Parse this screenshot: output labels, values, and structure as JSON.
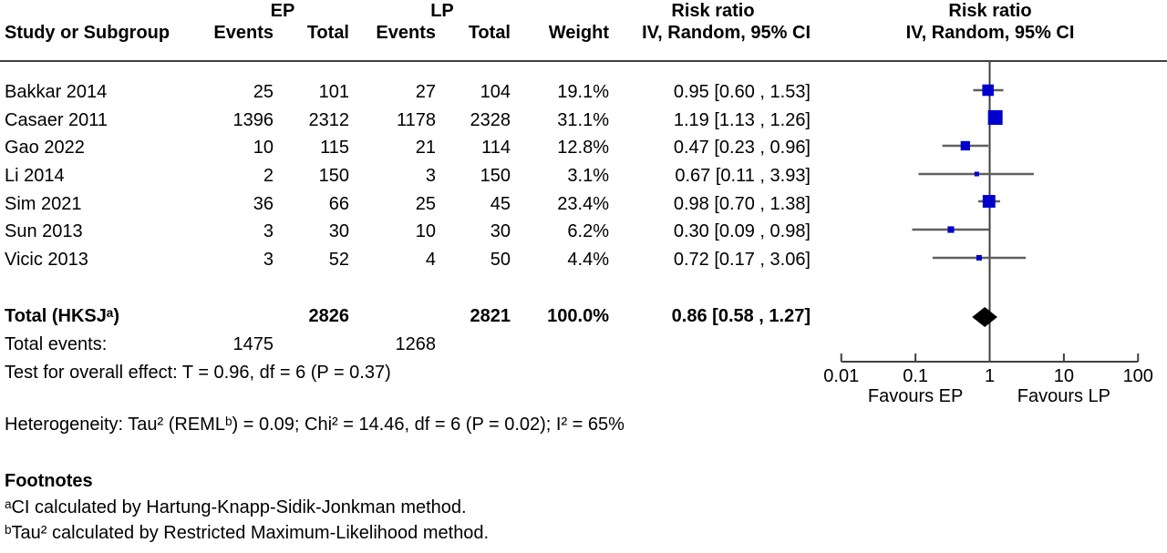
{
  "header": {
    "group1": "EP",
    "group2": "LP",
    "col_study": "Study or Subgroup",
    "col_events": "Events",
    "col_total": "Total",
    "col_weight": "Weight",
    "col_rr_title": "Risk ratio",
    "col_rr_sub": "IV, Random, 95% CI",
    "plot_title": "Risk ratio",
    "plot_sub": "IV, Random, 95% CI"
  },
  "total_row": {
    "label": "Total (HKSJᵃ)",
    "ep_total": 2826,
    "lp_total": 2821,
    "weight": "100.0%",
    "rr_text": "0.86 [0.58 , 1.27]"
  },
  "total_events": {
    "label": "Total events:",
    "ep": 1475,
    "lp": 1268
  },
  "overall_test": "Test for overall effect: T = 0.96, df = 6 (P = 0.37)",
  "heterogeneity": "Heterogeneity: Tau² (REMLᵇ) = 0.09; Chi² = 14.46, df = 6 (P = 0.02); I² = 65%",
  "footnotes": {
    "title": "Footnotes",
    "a": "ᵃCI calculated by Hartung-Knapp-Sidik-Jonkman method.",
    "b": "ᵇTau² calculated by Restricted Maximum-Likelihood method."
  },
  "axis": {
    "ticks": [
      0.01,
      0.1,
      1,
      10,
      100
    ],
    "tick_labels": [
      "0.01",
      "0.1",
      "1",
      "10",
      "100"
    ],
    "favours_left": "Favours EP",
    "favours_right": "Favours LP"
  },
  "colors": {
    "marker": "#0000cc",
    "ci_line": "#606060",
    "diamond": "#000000",
    "axis": "#3f3f3f",
    "text": "#000000"
  },
  "chart_data": {
    "type": "scatter",
    "subtype": "forest-plot",
    "title": "Risk ratio",
    "effect_measure": "Risk ratio, IV, Random, 95% CI",
    "x_scale": "log10",
    "x_range": [
      0.01,
      100
    ],
    "x_ticks": [
      0.01,
      0.1,
      1,
      10,
      100
    ],
    "null_line": 1,
    "favours": [
      "Favours EP",
      "Favours LP"
    ],
    "studies": [
      {
        "name": "Bakkar 2014",
        "ep_events": 25,
        "ep_total": 101,
        "lp_events": 27,
        "lp_total": 104,
        "weight": "19.1%",
        "weight_pct": 19.1,
        "rr_text": "0.95 [0.60 , 1.53]",
        "rr": 0.95,
        "ci_low": 0.6,
        "ci_high": 1.53
      },
      {
        "name": "Casaer 2011",
        "ep_events": 1396,
        "ep_total": 2312,
        "lp_events": 1178,
        "lp_total": 2328,
        "weight": "31.1%",
        "weight_pct": 31.1,
        "rr_text": "1.19 [1.13 , 1.26]",
        "rr": 1.19,
        "ci_low": 1.13,
        "ci_high": 1.26
      },
      {
        "name": "Gao 2022",
        "ep_events": 10,
        "ep_total": 115,
        "lp_events": 21,
        "lp_total": 114,
        "weight": "12.8%",
        "weight_pct": 12.8,
        "rr_text": "0.47 [0.23 , 0.96]",
        "rr": 0.47,
        "ci_low": 0.23,
        "ci_high": 0.96
      },
      {
        "name": "Li 2014",
        "ep_events": 2,
        "ep_total": 150,
        "lp_events": 3,
        "lp_total": 150,
        "weight": "3.1%",
        "weight_pct": 3.1,
        "rr_text": "0.67 [0.11 , 3.93]",
        "rr": 0.67,
        "ci_low": 0.11,
        "ci_high": 3.93
      },
      {
        "name": "Sim 2021",
        "ep_events": 36,
        "ep_total": 66,
        "lp_events": 25,
        "lp_total": 45,
        "weight": "23.4%",
        "weight_pct": 23.4,
        "rr_text": "0.98 [0.70 , 1.38]",
        "rr": 0.98,
        "ci_low": 0.7,
        "ci_high": 1.38
      },
      {
        "name": "Sun 2013",
        "ep_events": 3,
        "ep_total": 30,
        "lp_events": 10,
        "lp_total": 30,
        "weight": "6.2%",
        "weight_pct": 6.2,
        "rr_text": "0.30 [0.09 , 0.98]",
        "rr": 0.3,
        "ci_low": 0.09,
        "ci_high": 0.98
      },
      {
        "name": "Vicic 2013",
        "ep_events": 3,
        "ep_total": 52,
        "lp_events": 4,
        "lp_total": 50,
        "weight": "4.4%",
        "weight_pct": 4.4,
        "rr_text": "0.72 [0.17 , 3.06]",
        "rr": 0.72,
        "ci_low": 0.17,
        "ci_high": 3.06
      }
    ],
    "overall": {
      "label": "Total (HKSJᵃ)",
      "rr": 0.86,
      "ci_low": 0.58,
      "ci_high": 1.27,
      "weight_pct": 100.0
    }
  }
}
